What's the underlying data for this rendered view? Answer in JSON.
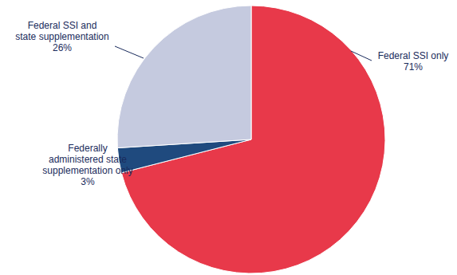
{
  "chart_data": {
    "type": "pie",
    "categories": [
      "Federal SSI only",
      "Federally administered state supplementation only",
      "Federal SSI and state supplementation"
    ],
    "values": [
      71,
      3,
      26
    ],
    "value_labels": [
      "71%",
      "3%",
      "26%"
    ],
    "colors": [
      "#e8394a",
      "#1f4a7e",
      "#c5cadf"
    ],
    "data_labels": true
  }
}
